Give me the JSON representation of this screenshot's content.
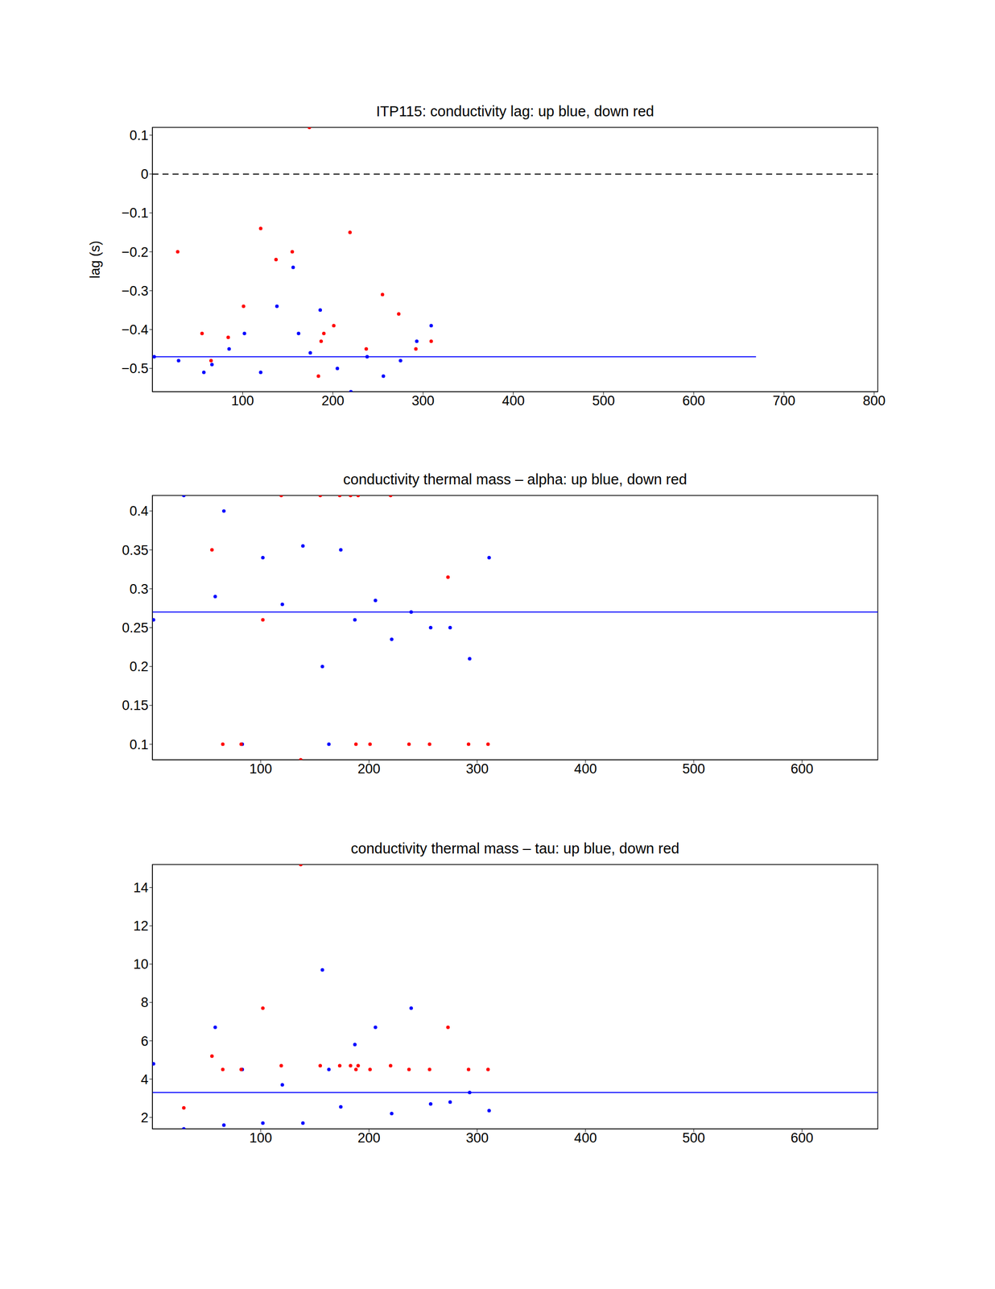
{
  "chart_data": [
    {
      "type": "scatter",
      "title": "ITP115: conductivity lag: up blue, down red",
      "y_label": "lag (s)",
      "xlim": [
        0,
        804
      ],
      "xticks": [
        100,
        200,
        300,
        400,
        500,
        600,
        700,
        800
      ],
      "ylim": [
        -0.56,
        0.12
      ],
      "yticks": [
        {
          "value": -0.5,
          "label": "−0.5"
        },
        {
          "value": -0.4,
          "label": "−0.4"
        },
        {
          "value": -0.3,
          "label": "−0.3"
        },
        {
          "value": -0.2,
          "label": "−0.2"
        },
        {
          "value": -0.1,
          "label": "−0.1"
        },
        0,
        0.1
      ],
      "reference_lines": [
        {
          "y": 0,
          "color": "#000000",
          "line_style": "dashed"
        },
        {
          "y": -0.47,
          "x": [
            0,
            669
          ],
          "color": "#0000ff",
          "line_style": "solid"
        }
      ],
      "series": [
        {
          "name": "up",
          "color": "#0000ff",
          "marker": "dot",
          "x": [
            2,
            29,
            57,
            66,
            85,
            102,
            120,
            138,
            156,
            162,
            175,
            186,
            205,
            220,
            238,
            256,
            275,
            293,
            309
          ],
          "values": [
            -0.47,
            -0.48,
            -0.51,
            -0.49,
            -0.45,
            -0.41,
            -0.51,
            -0.34,
            -0.24,
            -0.41,
            -0.46,
            -0.35,
            -0.5,
            -0.56,
            -0.47,
            -0.52,
            -0.48,
            -0.43,
            -0.39
          ]
        },
        {
          "name": "down",
          "color": "#ff0000",
          "marker": "dot",
          "x": [
            28,
            55,
            65,
            84,
            101,
            120,
            137,
            155,
            174,
            184,
            187,
            190,
            201,
            219,
            237,
            255,
            273,
            292,
            309
          ],
          "values": [
            -0.2,
            -0.41,
            -0.48,
            -0.42,
            -0.34,
            -0.14,
            -0.22,
            -0.2,
            0.12,
            -0.52,
            -0.43,
            -0.41,
            -0.39,
            -0.15,
            -0.45,
            -0.31,
            -0.36,
            -0.45,
            -0.43
          ]
        }
      ]
    },
    {
      "type": "scatter",
      "title": "conductivity thermal mass – alpha: up blue, down red",
      "xlim": [
        0,
        670
      ],
      "xticks": [
        100,
        200,
        300,
        400,
        500,
        600
      ],
      "ylim": [
        0.08,
        0.42
      ],
      "yticks": [
        0.1,
        0.15,
        0.2,
        0.25,
        0.3,
        0.35,
        0.4
      ],
      "reference_lines": [
        {
          "y": 0.27,
          "color": "#0000ff",
          "line_style": "solid"
        }
      ],
      "series": [
        {
          "name": "up",
          "color": "#0000ff",
          "marker": "dot",
          "x": [
            1,
            29,
            58,
            66,
            83,
            102,
            120,
            139,
            157,
            163,
            174,
            187,
            206,
            221,
            239,
            257,
            275,
            293,
            311
          ],
          "values": [
            0.26,
            0.42,
            0.29,
            0.4,
            0.1,
            0.34,
            0.28,
            0.355,
            0.2,
            0.1,
            0.35,
            0.26,
            0.285,
            0.235,
            0.27,
            0.25,
            0.25,
            0.21,
            0.34
          ]
        },
        {
          "name": "down",
          "color": "#ff0000",
          "marker": "dot",
          "x": [
            55,
            65,
            82,
            102,
            119,
            137,
            155,
            173,
            183,
            188,
            190,
            201,
            220,
            237,
            256,
            273,
            292,
            310
          ],
          "values": [
            0.35,
            0.1,
            0.1,
            0.26,
            0.42,
            0.08,
            0.42,
            0.42,
            0.42,
            0.1,
            0.42,
            0.1,
            0.42,
            0.1,
            0.1,
            0.315,
            0.1,
            0.1
          ]
        }
      ]
    },
    {
      "type": "scatter",
      "title": "conductivity thermal mass – tau: up blue, down red",
      "xlim": [
        0,
        670
      ],
      "xticks": [
        100,
        200,
        300,
        400,
        500,
        600
      ],
      "ylim": [
        1.4,
        15.2
      ],
      "yticks": [
        2,
        4,
        6,
        8,
        10,
        12,
        14
      ],
      "reference_lines": [
        {
          "y": 3.3,
          "color": "#0000ff",
          "line_style": "solid"
        }
      ],
      "series": [
        {
          "name": "up",
          "color": "#0000ff",
          "marker": "dot",
          "x": [
            1,
            29,
            58,
            66,
            83,
            102,
            120,
            139,
            157,
            163,
            174,
            187,
            206,
            221,
            239,
            257,
            275,
            293,
            311
          ],
          "values": [
            4.8,
            1.4,
            6.7,
            1.6,
            4.5,
            1.7,
            3.7,
            1.7,
            9.7,
            4.5,
            2.55,
            5.8,
            6.7,
            2.2,
            7.7,
            2.7,
            2.8,
            3.3,
            2.35
          ]
        },
        {
          "name": "down",
          "color": "#ff0000",
          "marker": "dot",
          "x": [
            29,
            55,
            65,
            82,
            102,
            119,
            137,
            155,
            173,
            183,
            188,
            190,
            201,
            220,
            237,
            256,
            273,
            292,
            310
          ],
          "values": [
            2.5,
            5.2,
            4.5,
            4.5,
            7.7,
            4.7,
            15.2,
            4.7,
            4.7,
            4.7,
            4.5,
            4.7,
            4.5,
            4.7,
            4.5,
            4.5,
            6.7,
            4.5,
            4.5
          ]
        }
      ]
    }
  ]
}
